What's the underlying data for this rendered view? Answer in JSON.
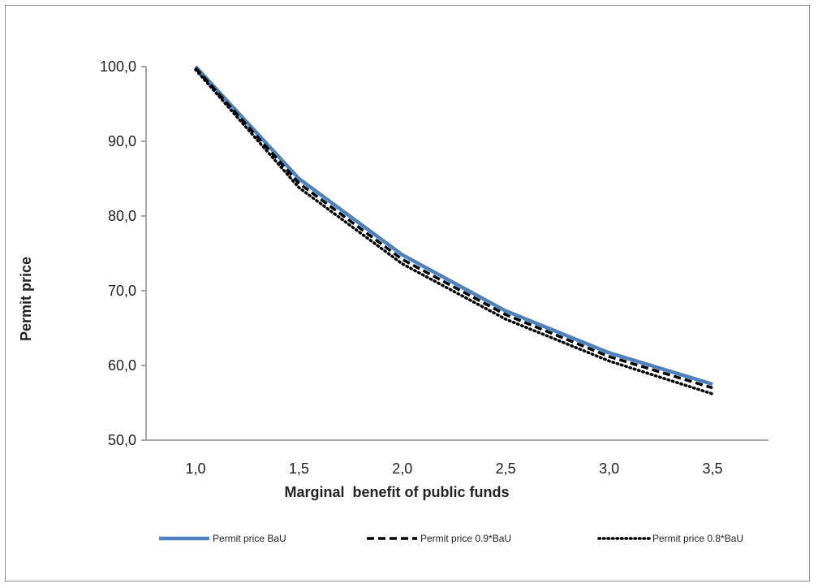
{
  "chart_data": {
    "type": "line",
    "xlabel": "Marginal  benefit of public funds",
    "ylabel": "Permit price",
    "x": [
      1.0,
      1.5,
      2.0,
      2.5,
      3.0,
      3.5
    ],
    "x_tick_labels": [
      "1,0",
      "1,5",
      "2,0",
      "2,5",
      "3,0",
      "3,5"
    ],
    "y_ticks": [
      50,
      60,
      70,
      80,
      90,
      100
    ],
    "y_tick_labels": [
      "50,0",
      "60,0",
      "70,0",
      "80,0",
      "90,0",
      "100,0"
    ],
    "ylim": [
      50,
      100
    ],
    "grid": false,
    "legend_position": "bottom",
    "series": [
      {
        "name": "Permit price BaU",
        "style": "solid",
        "color": "#4f81bd",
        "values": [
          100.0,
          85.0,
          74.8,
          67.3,
          61.7,
          57.5
        ]
      },
      {
        "name": "Permit price 0.9*BaU",
        "style": "dashed",
        "color": "#000000",
        "values": [
          99.8,
          84.4,
          74.2,
          66.8,
          61.2,
          57.0
        ]
      },
      {
        "name": "Permit price 0.8*BaU",
        "style": "dotted",
        "color": "#000000",
        "values": [
          99.6,
          83.8,
          73.6,
          66.2,
          60.6,
          56.2
        ]
      }
    ]
  }
}
